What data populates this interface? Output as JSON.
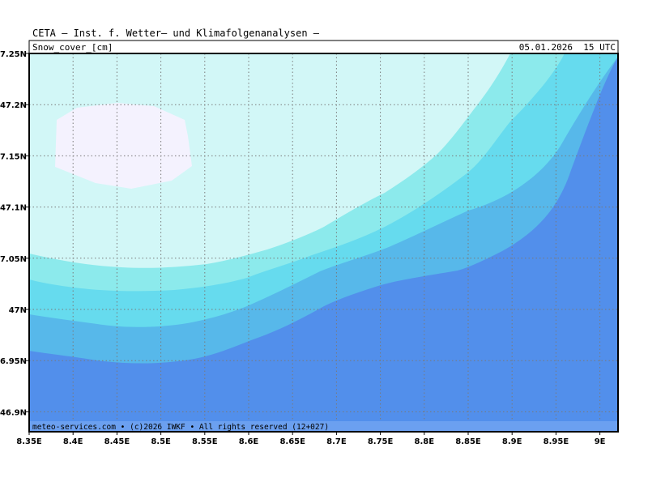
{
  "header": {
    "institute": "CETA — Inst. f. Wetter— und Klimafolgenanalysen —",
    "variable": "Snow_cover_[cm]",
    "valid_time": "05.01.2026  15 UTC"
  },
  "footer": {
    "credit": "meteo-services.com • (c)2026 IWKF • All rights reserved (12+027)"
  },
  "colors": {
    "band_0": "#f4f2fe",
    "band_1": "#d2f7f7",
    "band_2": "#8ceaec",
    "band_3": "#66dbee",
    "band_4": "#57b8ea",
    "band_5": "#528feb",
    "footer_bar": "#6ba0f0",
    "grid": "#7a7a7a"
  },
  "axes": {
    "lon_ticks": [
      "8.35E",
      "8.4E",
      "8.45E",
      "8.5E",
      "8.55E",
      "8.6E",
      "8.65E",
      "8.7E",
      "8.75E",
      "8.8E",
      "8.85E",
      "8.9E",
      "8.95E",
      "9E"
    ],
    "lat_ticks": [
      "7.25N",
      "47.2N",
      "7.15N",
      "47.1N",
      "7.05N",
      "47N",
      "6.95N",
      "46.9N"
    ],
    "lon_range": [
      8.35,
      9.02
    ],
    "lat_range": [
      46.88,
      47.25
    ]
  }
}
